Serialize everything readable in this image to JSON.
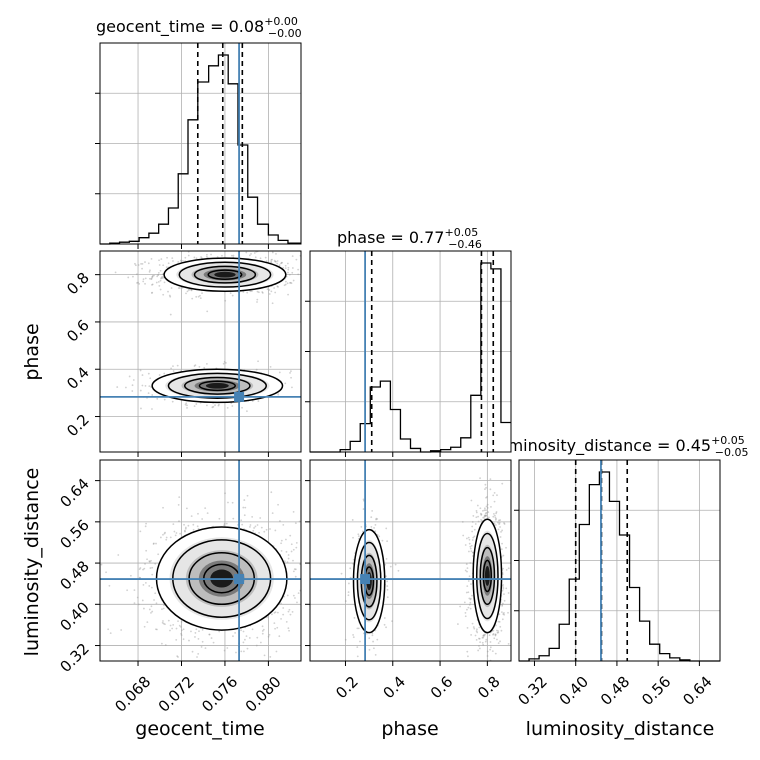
{
  "colors": {
    "truth": "#4682b4",
    "hist": "#000000",
    "grid": "#b0b0b0",
    "quantile": "#000000"
  },
  "chart_data": {
    "type": "corner",
    "grid": true,
    "parameters": [
      "geocent_time",
      "phase",
      "luminosity_distance"
    ],
    "truths": {
      "geocent_time": 0.0773,
      "phase": 0.283,
      "luminosity_distance": 0.449
    },
    "titles": [
      {
        "param": "geocent_time",
        "median_text": "0.08",
        "plus_text": "0.00",
        "minus_text": "0.00"
      },
      {
        "param": "phase",
        "median_text": "0.77",
        "plus_text": "0.05",
        "minus_text": "0.46"
      },
      {
        "param": "luminosity_distance",
        "median_text": "0.45",
        "plus_text": "0.05",
        "minus_text": "0.05"
      }
    ],
    "axes": {
      "geocent_time": {
        "range": [
          0.0645,
          0.083
        ],
        "ticks": [
          0.068,
          0.072,
          0.076,
          0.08
        ],
        "tick_labels": [
          "0.068",
          "0.072",
          "0.076",
          "0.080"
        ],
        "label": "geocent_time"
      },
      "phase": {
        "range": [
          0.05,
          0.9
        ],
        "ticks": [
          0.2,
          0.4,
          0.6,
          0.8
        ],
        "tick_labels": [
          "0.2",
          "0.4",
          "0.6",
          "0.8"
        ],
        "label": "phase"
      },
      "luminosity_distance": {
        "range": [
          0.29,
          0.68
        ],
        "ticks": [
          0.32,
          0.4,
          0.48,
          0.56,
          0.64
        ],
        "tick_labels": [
          "0.32",
          "0.40",
          "0.48",
          "0.56",
          "0.64"
        ],
        "label": "luminosity_distance"
      }
    },
    "histograms": {
      "geocent_time": {
        "bin_edges": [
          0.0645,
          0.0654,
          0.0663,
          0.0672,
          0.0681,
          0.069,
          0.0699,
          0.0708,
          0.0717,
          0.0726,
          0.0735,
          0.0745,
          0.0754,
          0.0763,
          0.0772,
          0.0781,
          0.079,
          0.08,
          0.0809,
          0.0818,
          0.083
        ],
        "counts": [
          0,
          1,
          2,
          3,
          7,
          12,
          22,
          40,
          78,
          138,
          180,
          198,
          210,
          178,
          110,
          52,
          22,
          10,
          4,
          1
        ],
        "quantiles": [
          0.0735,
          0.0758,
          0.0776
        ]
      },
      "phase": {
        "bin_edges": [
          0.05,
          0.0925,
          0.135,
          0.1775,
          0.22,
          0.2625,
          0.305,
          0.3475,
          0.39,
          0.4325,
          0.475,
          0.5175,
          0.56,
          0.6025,
          0.645,
          0.6875,
          0.73,
          0.7725,
          0.815,
          0.8575,
          0.9
        ],
        "counts": [
          0,
          0,
          0,
          2,
          9,
          24,
          55,
          60,
          36,
          11,
          3,
          0,
          1,
          2,
          4,
          12,
          48,
          160,
          155,
          25
        ],
        "quantiles": [
          0.311,
          0.775,
          0.825
        ]
      },
      "luminosity_distance": {
        "bin_edges": [
          0.29,
          0.3095,
          0.329,
          0.3485,
          0.368,
          0.3875,
          0.407,
          0.4265,
          0.446,
          0.4655,
          0.485,
          0.5045,
          0.524,
          0.5435,
          0.563,
          0.5825,
          0.602,
          0.6215,
          0.641,
          0.6605,
          0.68
        ],
        "counts": [
          0,
          2,
          5,
          12,
          35,
          78,
          130,
          168,
          180,
          152,
          120,
          70,
          38,
          16,
          7,
          3,
          1,
          0,
          0,
          0
        ],
        "quantiles": [
          0.4,
          0.45,
          0.5
        ]
      }
    },
    "density_2d": {
      "phase_vs_geocent_time": {
        "modes": [
          {
            "mean": [
              0.076,
              0.8
            ],
            "std": [
              0.0028,
              0.035
            ],
            "weight": 0.72
          },
          {
            "mean": [
              0.0753,
              0.33
            ],
            "std": [
              0.003,
              0.035
            ],
            "weight": 0.28
          }
        ]
      },
      "luminosity_distance_vs_geocent_time": {
        "modes": [
          {
            "mean": [
              0.0757,
              0.45
            ],
            "std": [
              0.003,
              0.05
            ],
            "weight": 1.0
          }
        ]
      },
      "luminosity_distance_vs_phase": {
        "modes": [
          {
            "mean": [
              0.8,
              0.455
            ],
            "std": [
              0.03,
              0.055
            ],
            "weight": 0.72
          },
          {
            "mean": [
              0.3,
              0.445
            ],
            "std": [
              0.033,
              0.05
            ],
            "weight": 0.28
          }
        ]
      }
    }
  }
}
